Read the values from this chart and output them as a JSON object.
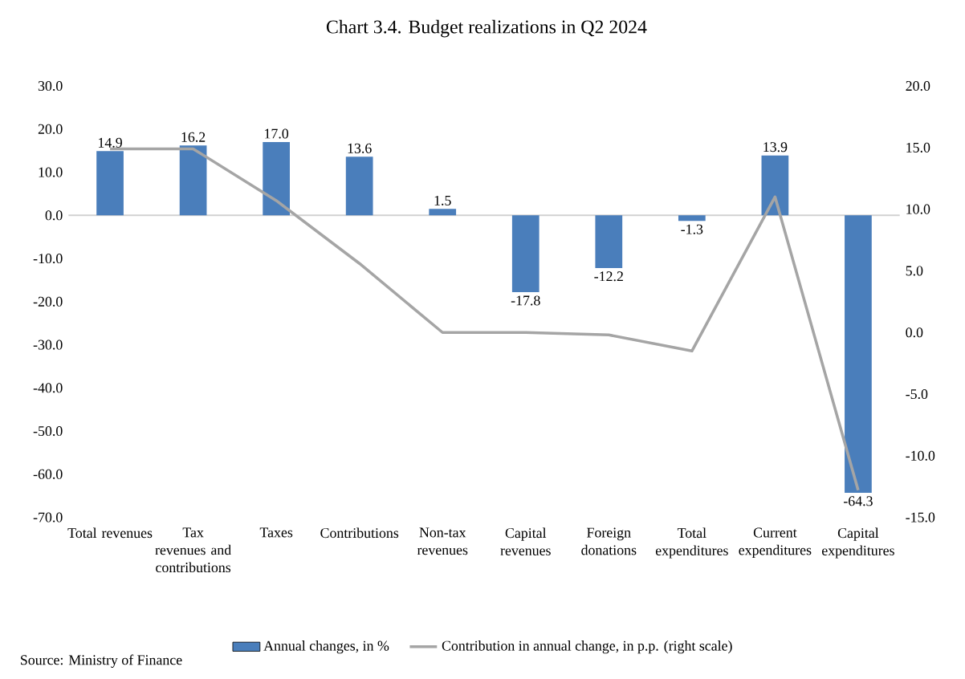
{
  "chart_data": {
    "type": "bar",
    "title": "Chart 3.4. Budget realizations in Q2 2024",
    "categories": [
      "Total revenues",
      "Tax revenues and contributions",
      "Taxes",
      "Contributions",
      "Non-tax revenues",
      "Capital revenues",
      "Foreign donations",
      "Total expenditures",
      "Current expenditures",
      "Capital expenditures"
    ],
    "series": [
      {
        "name": "Annual changes, in %",
        "color": "#4a7ebb",
        "values": [
          14.9,
          16.2,
          17.0,
          13.6,
          1.5,
          -17.8,
          -12.2,
          -1.3,
          13.9,
          -64.3
        ],
        "value_labels": [
          "14.9",
          "16.2",
          "17.0",
          "13.6",
          "1.5",
          "-17.8",
          "-12.2",
          "-1.3",
          "13.9",
          "-64.3"
        ]
      },
      {
        "name": "Contribution in annual change, in p.p. (right scale)",
        "type": "line",
        "axis": "y2",
        "color": "#a5a5a5",
        "values": [
          14.9,
          14.9,
          10.7,
          5.6,
          0.0,
          0.0,
          -0.2,
          -1.5,
          11.0,
          -12.8
        ]
      }
    ],
    "ylim": [
      -70,
      30
    ],
    "yticks": [
      {
        "value": 30,
        "label": "30.0"
      },
      {
        "value": 20,
        "label": "20.0"
      },
      {
        "value": 10,
        "label": "10.0"
      },
      {
        "value": 0,
        "label": "0.0"
      },
      {
        "value": -10,
        "label": "-10.0"
      },
      {
        "value": -20,
        "label": "-20.0"
      },
      {
        "value": -30,
        "label": "-30.0"
      },
      {
        "value": -40,
        "label": "-40.0"
      },
      {
        "value": -50,
        "label": "-50.0"
      },
      {
        "value": -60,
        "label": "-60.0"
      },
      {
        "value": -70,
        "label": "-70.0"
      }
    ],
    "y2lim": [
      -15,
      20
    ],
    "y2ticks": [
      {
        "value": 20,
        "label": "20.0"
      },
      {
        "value": 15,
        "label": "15.0"
      },
      {
        "value": 10,
        "label": "10.0"
      },
      {
        "value": 5,
        "label": "5.0"
      },
      {
        "value": 0,
        "label": "0.0"
      },
      {
        "value": -5,
        "label": "-5.0"
      },
      {
        "value": -10,
        "label": "-10.0"
      },
      {
        "value": -15,
        "label": "-15.0"
      }
    ],
    "legend": "bottom",
    "annotations": [
      "Source: Ministry of Finance"
    ]
  }
}
